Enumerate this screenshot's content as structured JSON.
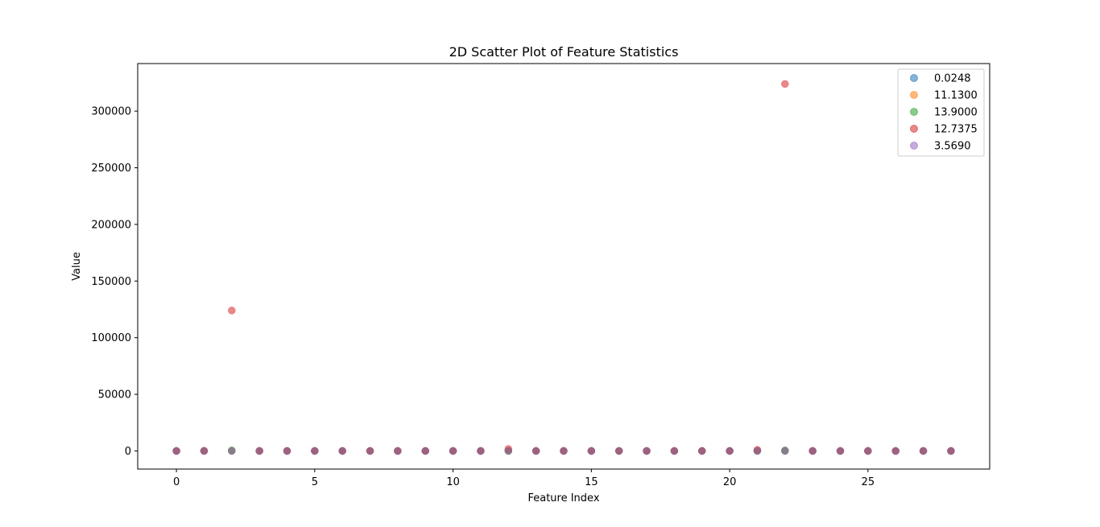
{
  "chart_data": {
    "type": "scatter",
    "title": "2D Scatter Plot of Feature Statistics",
    "xlabel": "Feature Index",
    "ylabel": "Value",
    "xlim": [
      -1.4,
      29.4
    ],
    "ylim": [
      -16000,
      342000
    ],
    "xticks": [
      0,
      5,
      10,
      15,
      20,
      25
    ],
    "yticks": [
      0,
      50000,
      100000,
      150000,
      200000,
      250000,
      300000
    ],
    "legend_position": "top-right",
    "grid": false,
    "x": [
      0,
      1,
      2,
      3,
      4,
      5,
      6,
      7,
      8,
      9,
      10,
      11,
      12,
      13,
      14,
      15,
      16,
      17,
      18,
      19,
      20,
      21,
      22,
      23,
      24,
      25,
      26,
      27,
      28
    ],
    "series": [
      {
        "name": "0.0248",
        "color": "#1f77b4",
        "values": [
          0,
          0,
          0,
          0,
          0,
          0,
          0,
          0,
          0,
          0,
          0,
          0,
          0,
          0,
          0,
          0,
          0,
          0,
          0,
          0,
          0,
          0,
          0,
          0,
          0,
          0,
          0,
          0,
          0
        ]
      },
      {
        "name": "11.1300",
        "color": "#ff7f0e",
        "values": [
          10,
          20,
          150,
          5,
          5,
          10,
          5,
          5,
          5,
          5,
          5,
          5,
          80,
          10,
          5,
          5,
          5,
          5,
          5,
          5,
          5,
          50,
          200,
          5,
          5,
          5,
          5,
          5,
          5
        ]
      },
      {
        "name": "13.9000",
        "color": "#2ca02c",
        "values": [
          5,
          80,
          500,
          5,
          5,
          10,
          5,
          5,
          5,
          5,
          5,
          5,
          50,
          10,
          5,
          5,
          5,
          5,
          5,
          5,
          5,
          50,
          500,
          5,
          5,
          5,
          5,
          5,
          5
        ]
      },
      {
        "name": "12.7375",
        "color": "#d62728",
        "values": [
          20,
          50,
          124000,
          10,
          10,
          20,
          10,
          10,
          10,
          10,
          10,
          10,
          1800,
          20,
          10,
          10,
          10,
          10,
          10,
          10,
          10,
          1000,
          324000,
          10,
          10,
          10,
          10,
          10,
          10
        ]
      },
      {
        "name": "3.5690",
        "color": "#9467bd",
        "values": [
          5,
          10,
          20,
          5,
          5,
          5,
          5,
          5,
          5,
          5,
          5,
          5,
          10,
          5,
          5,
          5,
          5,
          5,
          5,
          5,
          5,
          10,
          50,
          5,
          5,
          5,
          5,
          5,
          5
        ]
      }
    ]
  }
}
